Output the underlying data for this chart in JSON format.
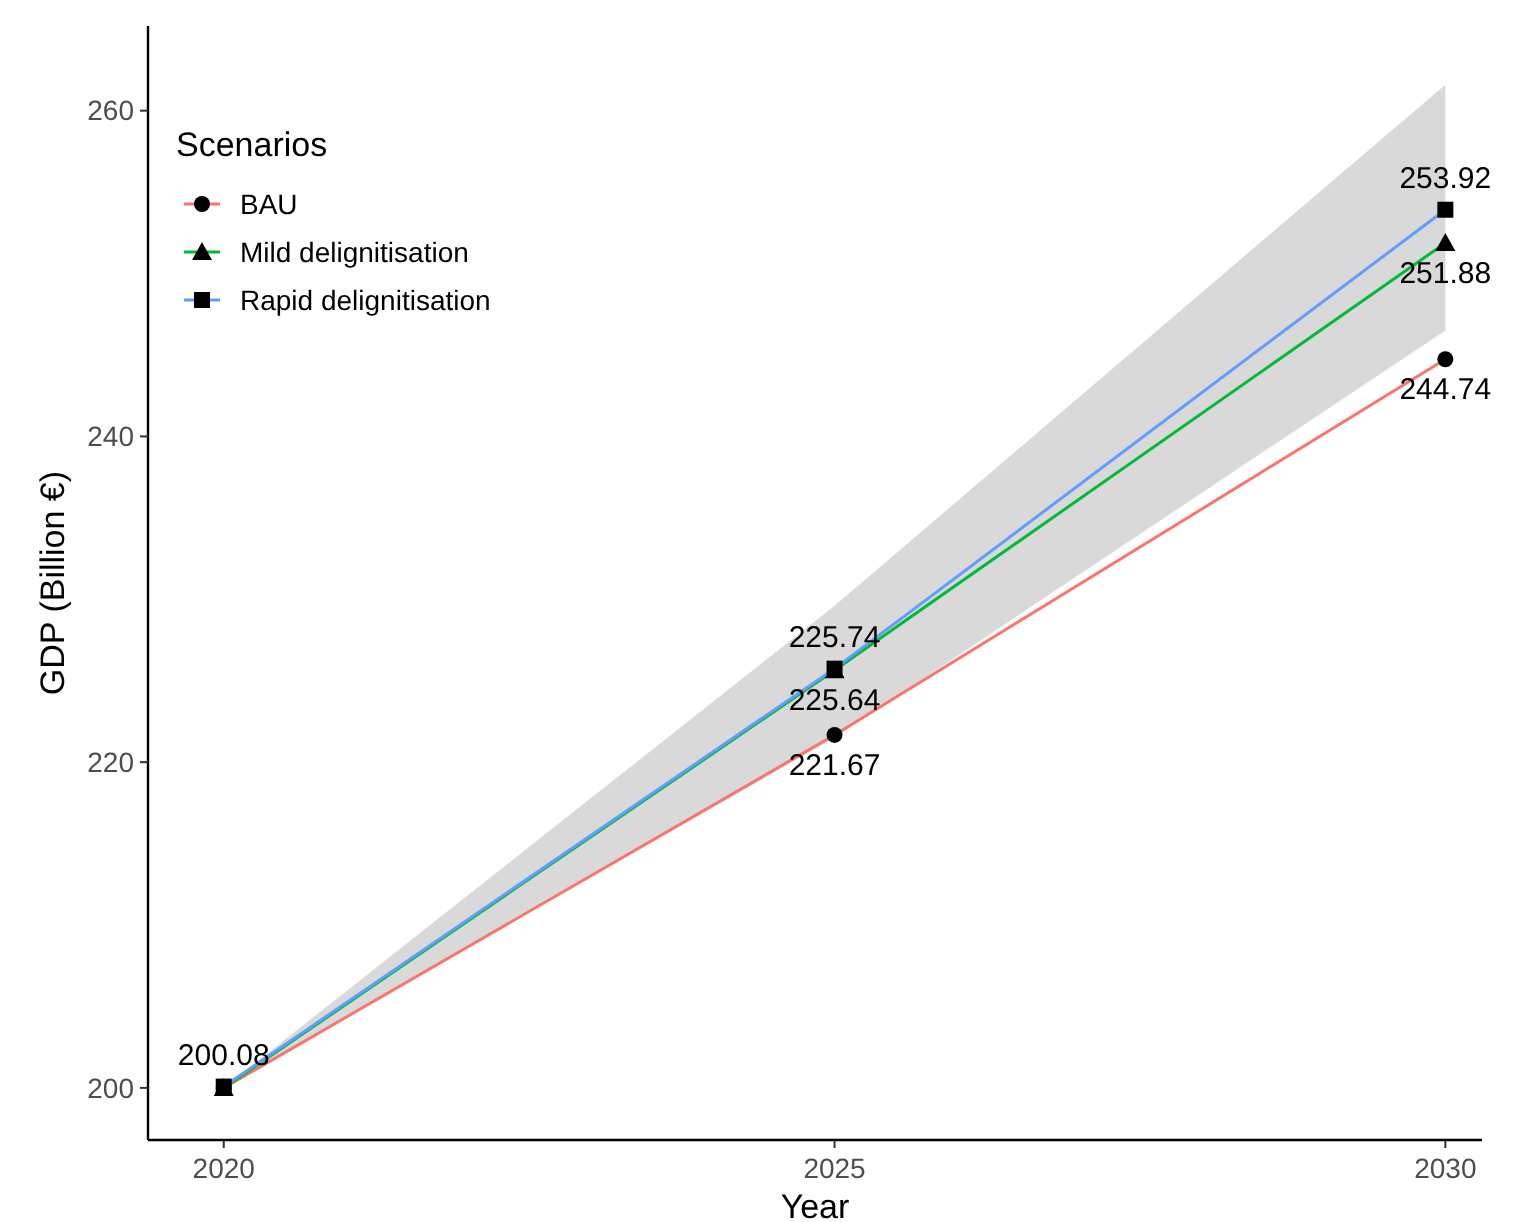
{
  "chart_data": {
    "type": "line",
    "xlabel": "Year",
    "ylabel": "GDP (Billion €)",
    "legend_title": "Scenarios",
    "legend": "top left",
    "x": [
      2020,
      2025,
      2030
    ],
    "xlim": [
      2019.38,
      2030.3
    ],
    "xticks": [
      2020,
      2025,
      2030
    ],
    "ylim": [
      196.8,
      265.2
    ],
    "yticks": [
      200,
      220,
      240,
      260
    ],
    "grid": false,
    "series": [
      {
        "name": "BAU",
        "color": "#f8766d",
        "marker": "circle",
        "values": [
          200,
          221.67,
          244.74
        ],
        "value_labels": [
          null,
          "221.67",
          "244.74"
        ]
      },
      {
        "name": "Mild delignitisation",
        "color": "#00ba38",
        "marker": "triangle",
        "values": [
          200,
          225.64,
          251.88
        ],
        "value_labels": [
          null,
          "225.64",
          "251.88"
        ],
        "lower": [
          200,
          221.5,
          246.5
        ],
        "upper": [
          200,
          229.6,
          261.6
        ]
      },
      {
        "name": "Rapid delignitisation",
        "color": "#619cff",
        "marker": "square",
        "values": [
          200.08,
          225.74,
          253.92
        ],
        "value_labels": [
          "200.08",
          "225.74",
          "253.92"
        ]
      }
    ]
  }
}
